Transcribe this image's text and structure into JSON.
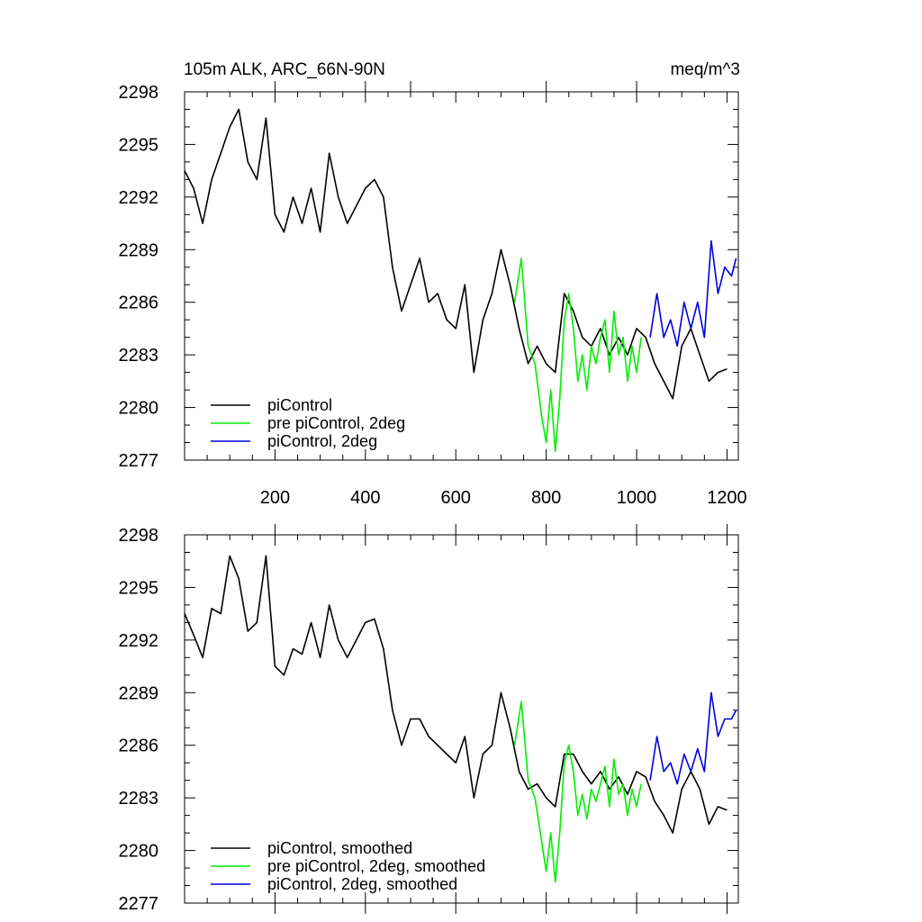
{
  "chart_data": [
    {
      "type": "line",
      "title": "105m ALK, ARC_66N-90N",
      "units": "meq/m^3",
      "xlim": [
        0,
        1225
      ],
      "ylim": [
        2277,
        2298
      ],
      "xticks": [
        200,
        400,
        600,
        800,
        1000,
        1200
      ],
      "xtick_labels": [
        "200",
        "400",
        "600",
        "800",
        "1000",
        "1200"
      ],
      "yticks": [
        2277,
        2280,
        2283,
        2286,
        2289,
        2292,
        2295,
        2298
      ],
      "ytick_labels": [
        "2277",
        "2280",
        "2283",
        "2286",
        "2289",
        "2292",
        "2295",
        "2298"
      ],
      "legend_position": "bottom-left",
      "series": [
        {
          "name": "piControl",
          "color": "#000000",
          "x": [
            0,
            20,
            40,
            60,
            80,
            100,
            120,
            140,
            160,
            180,
            200,
            220,
            240,
            260,
            280,
            300,
            320,
            340,
            360,
            380,
            400,
            420,
            440,
            460,
            480,
            500,
            520,
            540,
            560,
            580,
            600,
            620,
            640,
            660,
            680,
            700,
            720,
            740,
            760,
            780,
            800,
            820,
            840,
            860,
            880,
            900,
            920,
            940,
            960,
            980,
            1000,
            1020,
            1040,
            1060,
            1080,
            1100,
            1120,
            1140,
            1160,
            1180,
            1200
          ],
          "y": [
            2293.5,
            2292.5,
            2290.5,
            2293,
            2294.5,
            2296,
            2297,
            2294,
            2293,
            2296.5,
            2291,
            2290,
            2292,
            2290.5,
            2292.5,
            2290,
            2294.5,
            2292,
            2290.5,
            2291.5,
            2292.5,
            2293,
            2292,
            2288,
            2285.5,
            2287,
            2288.5,
            2286,
            2286.5,
            2285,
            2284.5,
            2287,
            2282,
            2285,
            2286.5,
            2289,
            2287,
            2284.5,
            2282.5,
            2283.5,
            2282.5,
            2282,
            2286.5,
            2285.5,
            2284,
            2283.5,
            2284.5,
            2283,
            2284,
            2283,
            2284.5,
            2284,
            2282.5,
            2281.5,
            2280.5,
            2283.5,
            2284.5,
            2283,
            2281.5,
            2282,
            2282.2
          ]
        },
        {
          "name": "pre piControl, 2deg",
          "color": "#00ee00",
          "x": [
            730,
            745,
            760,
            775,
            790,
            800,
            810,
            820,
            830,
            840,
            850,
            860,
            870,
            880,
            890,
            900,
            910,
            920,
            930,
            940,
            950,
            960,
            970,
            980,
            990,
            1000,
            1010
          ],
          "y": [
            2286,
            2288.5,
            2283.5,
            2282.5,
            2279.5,
            2278,
            2281,
            2277.5,
            2280.5,
            2285,
            2286.5,
            2284.5,
            2281.5,
            2283,
            2281,
            2283.5,
            2282.5,
            2284,
            2285,
            2282,
            2285.5,
            2283,
            2284,
            2281.5,
            2283.5,
            2282,
            2284
          ]
        },
        {
          "name": "piControl, 2deg",
          "color": "#0000dd",
          "x": [
            1030,
            1045,
            1060,
            1075,
            1090,
            1105,
            1120,
            1135,
            1150,
            1165,
            1180,
            1195,
            1210,
            1220
          ],
          "y": [
            2284,
            2286.5,
            2284,
            2285,
            2283.5,
            2286,
            2284.5,
            2286,
            2284,
            2289.5,
            2286.5,
            2288,
            2287.5,
            2288.5
          ]
        }
      ]
    },
    {
      "type": "line",
      "title": "",
      "xlim": [
        0,
        1225
      ],
      "ylim": [
        2277,
        2298
      ],
      "xticks": [
        200,
        400,
        600,
        800,
        1000,
        1200
      ],
      "xtick_labels": [],
      "yticks": [
        2277,
        2280,
        2283,
        2286,
        2289,
        2292,
        2295,
        2298
      ],
      "ytick_labels": [
        "2277",
        "2280",
        "2283",
        "2286",
        "2289",
        "2292",
        "2295",
        "2298"
      ],
      "legend_position": "bottom-left",
      "series": [
        {
          "name": "piControl, smoothed",
          "color": "#000000",
          "x": [
            0,
            20,
            40,
            60,
            80,
            100,
            120,
            140,
            160,
            180,
            200,
            220,
            240,
            260,
            280,
            300,
            320,
            340,
            360,
            380,
            400,
            420,
            440,
            460,
            480,
            500,
            520,
            540,
            560,
            580,
            600,
            620,
            640,
            660,
            680,
            700,
            720,
            740,
            760,
            780,
            800,
            820,
            840,
            860,
            880,
            900,
            920,
            940,
            960,
            980,
            1000,
            1020,
            1040,
            1060,
            1080,
            1100,
            1120,
            1140,
            1160,
            1180,
            1200
          ],
          "y": [
            2293.5,
            2292.3,
            2291,
            2293.8,
            2293.5,
            2296.8,
            2295.5,
            2292.5,
            2293,
            2296.8,
            2290.5,
            2290,
            2291.5,
            2291.2,
            2293,
            2291,
            2294,
            2292,
            2291,
            2292,
            2293,
            2293.2,
            2291.5,
            2288,
            2286,
            2287.5,
            2287.5,
            2286.5,
            2286,
            2285.5,
            2285,
            2286.5,
            2283,
            2285.5,
            2286,
            2289,
            2287,
            2284.5,
            2283.5,
            2283.8,
            2283,
            2282.5,
            2285.5,
            2285.5,
            2284.5,
            2283.8,
            2284.5,
            2283.5,
            2284.2,
            2283.2,
            2284.5,
            2284.2,
            2282.8,
            2282,
            2281,
            2283.5,
            2284.5,
            2283.5,
            2281.5,
            2282.5,
            2282.3
          ]
        },
        {
          "name": "pre piControl, 2deg, smoothed",
          "color": "#00ee00",
          "x": [
            730,
            745,
            760,
            775,
            790,
            800,
            810,
            820,
            830,
            840,
            850,
            860,
            870,
            880,
            890,
            900,
            910,
            920,
            930,
            940,
            950,
            960,
            970,
            980,
            990,
            1000,
            1010
          ],
          "y": [
            2286,
            2288.5,
            2284,
            2283,
            2280.5,
            2278.8,
            2281,
            2278.2,
            2281,
            2285,
            2286,
            2284.5,
            2282,
            2283.2,
            2281.8,
            2283.5,
            2282.8,
            2283.8,
            2284.8,
            2282.5,
            2285.2,
            2283.2,
            2283.8,
            2282,
            2283.5,
            2282.5,
            2283.8
          ]
        },
        {
          "name": "piControl, 2deg, smoothed",
          "color": "#0000dd",
          "x": [
            1030,
            1045,
            1060,
            1075,
            1090,
            1105,
            1120,
            1135,
            1150,
            1165,
            1180,
            1195,
            1210,
            1220
          ],
          "y": [
            2284,
            2286.5,
            2284.5,
            2285,
            2283.8,
            2285.5,
            2284.5,
            2285.8,
            2284.5,
            2289,
            2286.5,
            2287.5,
            2287.5,
            2288
          ]
        }
      ]
    }
  ]
}
